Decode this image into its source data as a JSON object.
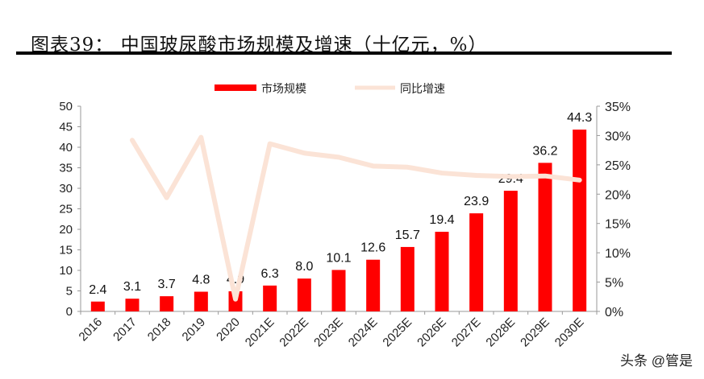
{
  "title": "图表39：  中国玻尿酸市场规模及增速（十亿元，%）",
  "watermark": "头条 @管是",
  "chart_data": {
    "type": "bar+line",
    "categories": [
      "2016",
      "2017",
      "2018",
      "2019",
      "2020",
      "2021E",
      "2022E",
      "2023E",
      "2024E",
      "2025E",
      "2026E",
      "2027E",
      "2028E",
      "2029E",
      "2030E"
    ],
    "series": [
      {
        "name": "市场规模",
        "type": "bar",
        "axis": "left",
        "color": "#ff0000",
        "values": [
          2.4,
          3.1,
          3.7,
          4.8,
          4.9,
          6.3,
          8.0,
          10.1,
          12.6,
          15.7,
          19.4,
          23.9,
          29.4,
          36.2,
          44.3
        ]
      },
      {
        "name": "同比增速",
        "type": "line",
        "axis": "right",
        "color": "#fbe3d6",
        "values": [
          null,
          29.2,
          19.4,
          29.7,
          2.1,
          28.6,
          27.0,
          26.3,
          24.8,
          24.6,
          23.6,
          23.2,
          23.0,
          23.1,
          22.4
        ]
      }
    ],
    "left_axis": {
      "ylim": [
        0,
        50
      ],
      "ticks": [
        "0",
        "5",
        "10",
        "15",
        "20",
        "25",
        "30",
        "35",
        "40",
        "45",
        "50"
      ]
    },
    "right_axis": {
      "ylim": [
        0,
        35
      ],
      "ticks": [
        "0%",
        "5%",
        "10%",
        "15%",
        "20%",
        "25%",
        "30%",
        "35%"
      ]
    },
    "data_labels": [
      "2.4",
      "3.1",
      "3.7",
      "4.8",
      "4.9",
      "6.3",
      "8.0",
      "10.1",
      "12.6",
      "15.7",
      "19.4",
      "23.9",
      "29.4",
      "36.2",
      "44.3"
    ],
    "legend": "top-center",
    "grid": false
  }
}
